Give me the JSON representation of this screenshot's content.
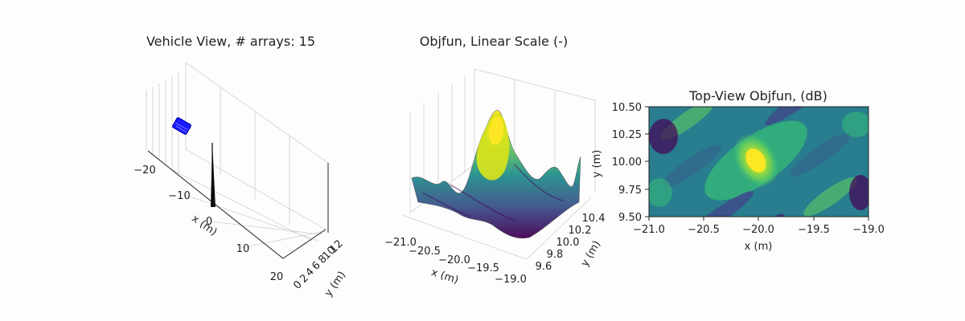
{
  "chart_data": [
    {
      "type": "3d-scatter",
      "title": "Vehicle View, # arrays: 15",
      "xlabel": "x (m)",
      "ylabel": "y (m)",
      "xticks": [
        "−20",
        "−10",
        "0",
        "10",
        "20"
      ],
      "yticks": [
        "0",
        "2",
        "4",
        "6",
        "8",
        "10",
        "12"
      ],
      "xlim": [
        -20,
        20
      ],
      "ylim": [
        0,
        12
      ],
      "array_count": 15,
      "vehicle_color": "#0000ff",
      "target_color": "#000000",
      "grid": true
    },
    {
      "type": "3d-surface",
      "title": "Objfun, Linear Scale (-)",
      "xlabel": "x (m)",
      "ylabel": "y (m)",
      "xticks": [
        "−21.0",
        "−20.5",
        "−20.0",
        "−19.5",
        "−19.0"
      ],
      "yticks": [
        "9.6",
        "9.8",
        "10.0",
        "10.2",
        "10.4"
      ],
      "xlim": [
        -21.0,
        -19.0
      ],
      "ylim": [
        9.5,
        10.5
      ],
      "peak": {
        "x": -20.0,
        "y": 10.0
      },
      "colormap": "viridis",
      "grid": true
    },
    {
      "type": "heatmap",
      "title": "Top-View Objfun, (dB)",
      "xlabel": "x (m)",
      "ylabel": "",
      "xticks": [
        "−21.0",
        "−20.5",
        "−20.0",
        "−19.5",
        "−19.0"
      ],
      "yticks": [
        "10.50",
        "10.25",
        "10.00",
        "9.75",
        "9.50"
      ],
      "xlim": [
        -21.0,
        -19.0
      ],
      "ylim": [
        9.5,
        10.5
      ],
      "peak": {
        "x": -20.0,
        "y": 10.0
      },
      "colormap": "viridis"
    }
  ]
}
